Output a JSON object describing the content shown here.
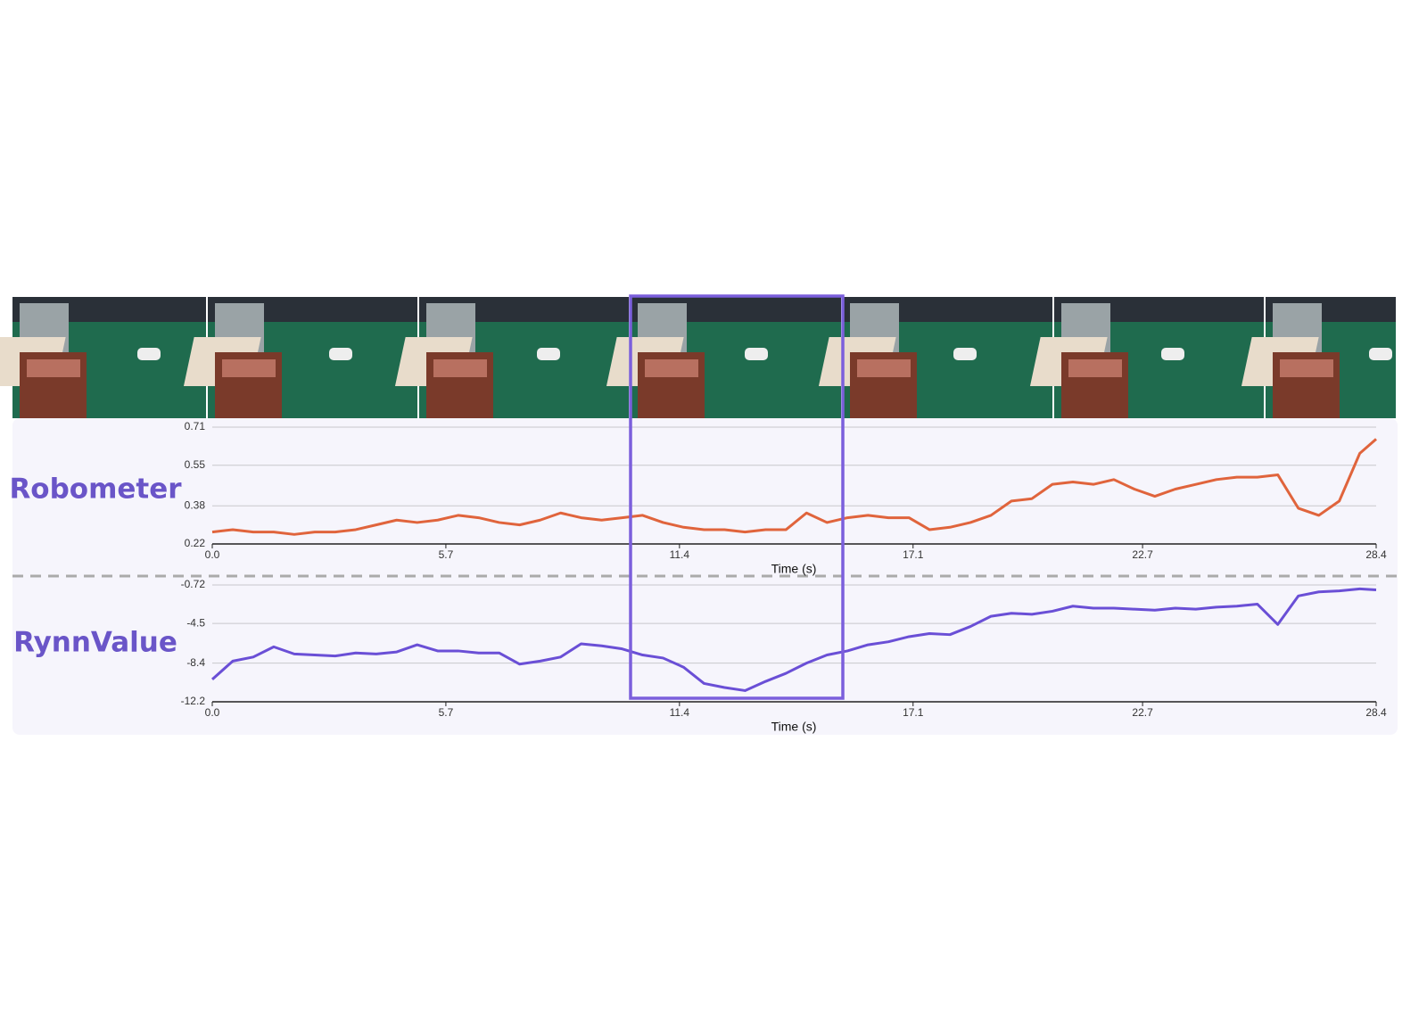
{
  "chart_data": [
    {
      "type": "line",
      "title": "Robometer",
      "xlabel": "Time (s)",
      "x": [
        0,
        0.5,
        1,
        1.5,
        2,
        2.5,
        3,
        3.5,
        4,
        4.5,
        5,
        5.5,
        6,
        6.5,
        7,
        7.5,
        8,
        8.5,
        9,
        9.5,
        10,
        10.5,
        11,
        11.5,
        12,
        12.5,
        13,
        13.5,
        14,
        14.5,
        15,
        15.5,
        16,
        16.5,
        17,
        17.5,
        18,
        18.5,
        19,
        19.5,
        20,
        20.5,
        21,
        21.5,
        22,
        22.5,
        23,
        23.5,
        24,
        24.5,
        25,
        25.5,
        26,
        26.5,
        27,
        27.5,
        28,
        28.4
      ],
      "series": [
        {
          "color": "#e0643c",
          "values": [
            0.27,
            0.28,
            0.27,
            0.27,
            0.26,
            0.27,
            0.27,
            0.28,
            0.3,
            0.32,
            0.31,
            0.32,
            0.34,
            0.33,
            0.31,
            0.3,
            0.32,
            0.35,
            0.33,
            0.32,
            0.33,
            0.34,
            0.31,
            0.29,
            0.28,
            0.28,
            0.27,
            0.28,
            0.28,
            0.35,
            0.31,
            0.33,
            0.34,
            0.33,
            0.33,
            0.28,
            0.29,
            0.31,
            0.34,
            0.4,
            0.41,
            0.47,
            0.48,
            0.47,
            0.49,
            0.45,
            0.42,
            0.45,
            0.47,
            0.49,
            0.5,
            0.5,
            0.51,
            0.37,
            0.34,
            0.4,
            0.6,
            0.66
          ]
        }
      ],
      "xlim": [
        0,
        28.4
      ],
      "xticks": [
        {
          "value": 0,
          "label": "0.0"
        },
        5.7,
        11.4,
        17.1,
        22.7,
        28.4
      ],
      "ylim": [
        0.22,
        0.71
      ],
      "yticks": [
        0.22,
        0.38,
        0.55,
        0.71
      ],
      "grid": true
    },
    {
      "type": "line",
      "title": "RynnValue",
      "xlabel": "Time (s)",
      "x": [
        0,
        0.5,
        1,
        1.5,
        2,
        2.5,
        3,
        3.5,
        4,
        4.5,
        5,
        5.5,
        6,
        6.5,
        7,
        7.5,
        8,
        8.5,
        9,
        9.5,
        10,
        10.5,
        11,
        11.5,
        12,
        12.5,
        13,
        13.5,
        14,
        14.5,
        15,
        15.5,
        16,
        16.5,
        17,
        17.5,
        18,
        18.5,
        19,
        19.5,
        20,
        20.5,
        21,
        21.5,
        22,
        22.5,
        23,
        23.5,
        24,
        24.5,
        25,
        25.5,
        26,
        26.5,
        27,
        27.5,
        28,
        28.4
      ],
      "series": [
        {
          "color": "#6a4fd6",
          "values": [
            -10,
            -8.2,
            -7.8,
            -6.8,
            -7.5,
            -7.6,
            -7.7,
            -7.4,
            -7.5,
            -7.3,
            -6.6,
            -7.2,
            -7.2,
            -7.4,
            -7.4,
            -8.5,
            -8.2,
            -7.8,
            -6.5,
            -6.7,
            -7.0,
            -7.6,
            -7.9,
            -8.8,
            -10.4,
            -10.8,
            -11.1,
            -10.2,
            -9.4,
            -8.4,
            -7.6,
            -7.2,
            -6.6,
            -6.3,
            -5.8,
            -5.5,
            -5.6,
            -4.8,
            -3.8,
            -3.5,
            -3.6,
            -3.3,
            -2.8,
            -3.0,
            -3.0,
            -3.1,
            -3.2,
            -3.0,
            -3.1,
            -2.9,
            -2.8,
            -2.6,
            -4.6,
            -1.8,
            -1.4,
            -1.3,
            -1.1,
            -1.2
          ]
        }
      ],
      "xlim": [
        0,
        28.4
      ],
      "xticks": [
        {
          "value": 0,
          "label": "0.0"
        },
        5.7,
        11.4,
        17.1,
        22.7,
        28.4
      ],
      "ylim": [
        -12.2,
        -0.72
      ],
      "yticks": [
        -12.2,
        -8.4,
        -4.5,
        -0.72
      ],
      "grid": true
    }
  ]
}
